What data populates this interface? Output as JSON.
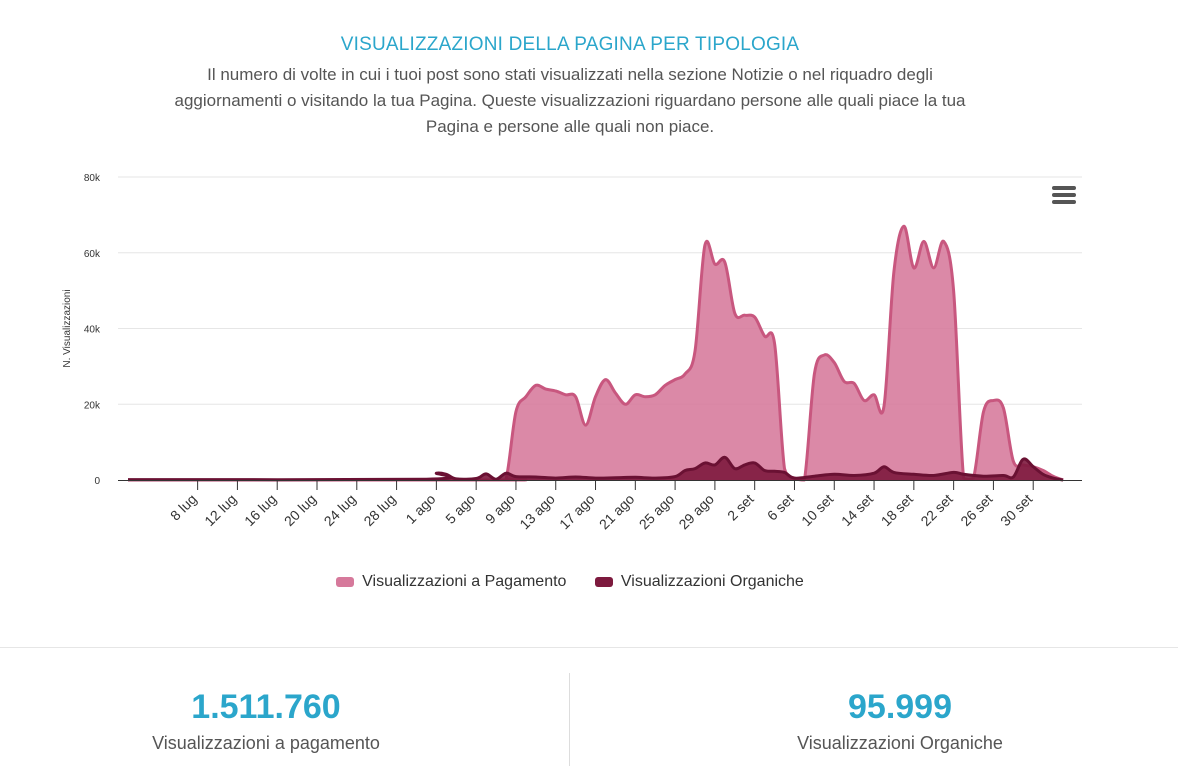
{
  "header": {
    "title": "VISUALIZZAZIONI DELLA PAGINA PER TIPOLOGIA",
    "subtitle": "Il numero di volte in cui i tuoi post sono stati visualizzati nella sezione Notizie o nel riquadro degli aggiornamenti o visitando la tua Pagina. Queste visualizzazioni riguardano persone alle quali piace la tua Pagina e persone alle quali non piace."
  },
  "chart_data": {
    "type": "area",
    "ylabel": "N. Visualizzazioni",
    "ylim": [
      0,
      80000
    ],
    "y_ticks": [
      "0",
      "20k",
      "40k",
      "60k",
      "80k"
    ],
    "x_range": [
      "2017-07-01",
      "2017-10-04"
    ],
    "x_tick_labels": [
      "8 lug",
      "12 lug",
      "16 lug",
      "20 lug",
      "24 lug",
      "28 lug",
      "1 ago",
      "5 ago",
      "9 ago",
      "13 ago",
      "17 ago",
      "21 ago",
      "25 ago",
      "29 ago",
      "2 set",
      "6 set",
      "10 set",
      "14 set",
      "18 set",
      "22 set",
      "26 set",
      "30 set"
    ],
    "x_tick_dates": [
      "2017-07-08",
      "2017-07-12",
      "2017-07-16",
      "2017-07-20",
      "2017-07-24",
      "2017-07-28",
      "2017-08-01",
      "2017-08-05",
      "2017-08-09",
      "2017-08-13",
      "2017-08-17",
      "2017-08-21",
      "2017-08-25",
      "2017-08-29",
      "2017-09-02",
      "2017-09-06",
      "2017-09-10",
      "2017-09-14",
      "2017-09-18",
      "2017-09-22",
      "2017-09-26",
      "2017-09-30"
    ],
    "grid": true,
    "legend_position": "bottom",
    "series": [
      {
        "name": "Visualizzazioni a Pagamento",
        "color": "#d6799b",
        "line_color": "#c8577f",
        "points": [
          [
            "2017-07-01",
            0
          ],
          [
            "2017-08-07",
            0
          ],
          [
            "2017-08-08",
            200
          ],
          [
            "2017-08-09",
            18000
          ],
          [
            "2017-08-10",
            22000
          ],
          [
            "2017-08-11",
            25000
          ],
          [
            "2017-08-12",
            24000
          ],
          [
            "2017-08-13",
            23500
          ],
          [
            "2017-08-14",
            22500
          ],
          [
            "2017-08-15",
            22000
          ],
          [
            "2017-08-16",
            14500
          ],
          [
            "2017-08-17",
            22000
          ],
          [
            "2017-08-18",
            26500
          ],
          [
            "2017-08-19",
            23000
          ],
          [
            "2017-08-20",
            20000
          ],
          [
            "2017-08-21",
            22500
          ],
          [
            "2017-08-22",
            22000
          ],
          [
            "2017-08-23",
            22500
          ],
          [
            "2017-08-24",
            25000
          ],
          [
            "2017-08-25",
            26500
          ],
          [
            "2017-08-26",
            28000
          ],
          [
            "2017-08-27",
            34000
          ],
          [
            "2017-08-28",
            62000
          ],
          [
            "2017-08-29",
            57000
          ],
          [
            "2017-08-30",
            57500
          ],
          [
            "2017-08-31",
            44000
          ],
          [
            "2017-09-01",
            43500
          ],
          [
            "2017-09-02",
            43000
          ],
          [
            "2017-09-03",
            38000
          ],
          [
            "2017-09-04",
            36000
          ],
          [
            "2017-09-05",
            3000
          ],
          [
            "2017-09-06",
            500
          ],
          [
            "2017-09-07",
            0
          ],
          [
            "2017-09-08",
            28000
          ],
          [
            "2017-09-09",
            33000
          ],
          [
            "2017-09-10",
            31000
          ],
          [
            "2017-09-11",
            26000
          ],
          [
            "2017-09-12",
            25500
          ],
          [
            "2017-09-13",
            21000
          ],
          [
            "2017-09-14",
            22500
          ],
          [
            "2017-09-15",
            19500
          ],
          [
            "2017-09-16",
            55000
          ],
          [
            "2017-09-17",
            67000
          ],
          [
            "2017-09-18",
            56000
          ],
          [
            "2017-09-19",
            63000
          ],
          [
            "2017-09-20",
            56000
          ],
          [
            "2017-09-21",
            63000
          ],
          [
            "2017-09-22",
            50000
          ],
          [
            "2017-09-23",
            500
          ],
          [
            "2017-09-24",
            500
          ],
          [
            "2017-09-25",
            18000
          ],
          [
            "2017-09-26",
            21000
          ],
          [
            "2017-09-27",
            19000
          ],
          [
            "2017-09-28",
            5000
          ],
          [
            "2017-09-29",
            4000
          ],
          [
            "2017-09-30",
            3500
          ],
          [
            "2017-10-01",
            2500
          ],
          [
            "2017-10-02",
            1000
          ],
          [
            "2017-10-03",
            0
          ]
        ]
      },
      {
        "name": "Visualizzazioni Organiche",
        "color": "#7d1a3e",
        "line_color": "#6a1133",
        "points": [
          [
            "2017-07-01",
            100
          ],
          [
            "2017-07-31",
            200
          ],
          [
            "2017-08-01",
            1800
          ],
          [
            "2017-08-02",
            1500
          ],
          [
            "2017-08-03",
            300
          ],
          [
            "2017-08-05",
            400
          ],
          [
            "2017-08-06",
            1600
          ],
          [
            "2017-08-07",
            200
          ],
          [
            "2017-08-08",
            1800
          ],
          [
            "2017-08-09",
            900
          ],
          [
            "2017-08-11",
            800
          ],
          [
            "2017-08-13",
            500
          ],
          [
            "2017-08-15",
            800
          ],
          [
            "2017-08-17",
            500
          ],
          [
            "2017-08-19",
            600
          ],
          [
            "2017-08-21",
            700
          ],
          [
            "2017-08-23",
            500
          ],
          [
            "2017-08-25",
            900
          ],
          [
            "2017-08-26",
            2500
          ],
          [
            "2017-08-27",
            3000
          ],
          [
            "2017-08-28",
            4500
          ],
          [
            "2017-08-29",
            4000
          ],
          [
            "2017-08-30",
            6000
          ],
          [
            "2017-08-31",
            3000
          ],
          [
            "2017-09-01",
            4000
          ],
          [
            "2017-09-02",
            4500
          ],
          [
            "2017-09-03",
            2500
          ],
          [
            "2017-09-04",
            2300
          ],
          [
            "2017-09-05",
            2000
          ],
          [
            "2017-09-06",
            500
          ],
          [
            "2017-09-08",
            1000
          ],
          [
            "2017-09-10",
            1500
          ],
          [
            "2017-09-12",
            1200
          ],
          [
            "2017-09-14",
            1800
          ],
          [
            "2017-09-15",
            3500
          ],
          [
            "2017-09-16",
            2000
          ],
          [
            "2017-09-18",
            1500
          ],
          [
            "2017-09-20",
            1200
          ],
          [
            "2017-09-22",
            2000
          ],
          [
            "2017-09-23",
            1500
          ],
          [
            "2017-09-25",
            1000
          ],
          [
            "2017-09-27",
            1200
          ],
          [
            "2017-09-28",
            800
          ],
          [
            "2017-09-29",
            5500
          ],
          [
            "2017-09-30",
            3500
          ],
          [
            "2017-10-01",
            1500
          ],
          [
            "2017-10-02",
            500
          ],
          [
            "2017-10-03",
            0
          ]
        ]
      }
    ]
  },
  "stats": [
    {
      "value": "1.511.760",
      "label": "Visualizzazioni a pagamento"
    },
    {
      "value": "95.999",
      "label": "Visualizzazioni Organiche"
    }
  ]
}
